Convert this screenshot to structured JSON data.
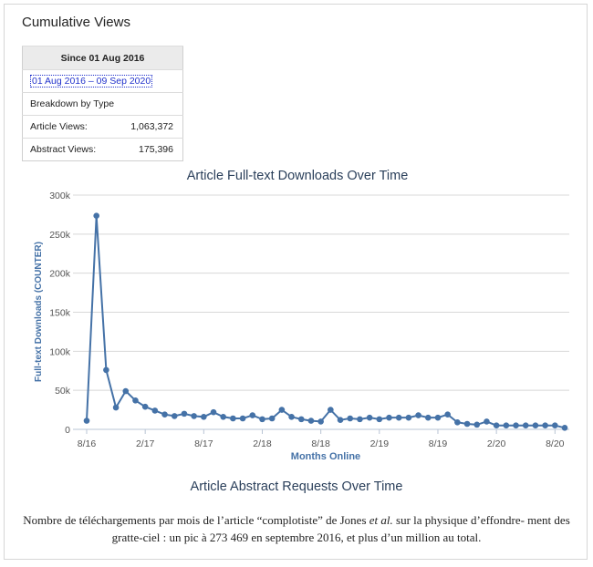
{
  "header": {
    "title": "Cumulative Views"
  },
  "stats": {
    "header": "Since 01 Aug 2016",
    "range_link": "01 Aug 2016 – 09 Sep 2020",
    "breakdown_label": "Breakdown by Type",
    "rows": [
      {
        "label": "Article Views:",
        "value": "1,063,372"
      },
      {
        "label": "Abstract Views:",
        "value": "175,396"
      }
    ]
  },
  "chart_data": {
    "type": "line",
    "title": "Article Full-text Downloads Over Time",
    "xlabel": "Months Online",
    "ylabel": "Full-text Downloads (COUNTER)",
    "ylim": [
      0,
      300000
    ],
    "yticks": [
      0,
      50000,
      100000,
      150000,
      200000,
      250000,
      300000
    ],
    "ytick_labels": [
      "0",
      "50k",
      "100k",
      "150k",
      "200k",
      "250k",
      "300k"
    ],
    "xticks": [
      {
        "index": 0,
        "label": "8/16"
      },
      {
        "index": 6,
        "label": "2/17"
      },
      {
        "index": 12,
        "label": "8/17"
      },
      {
        "index": 18,
        "label": "2/18"
      },
      {
        "index": 24,
        "label": "8/18"
      },
      {
        "index": 30,
        "label": "2/19"
      },
      {
        "index": 36,
        "label": "8/19"
      },
      {
        "index": 42,
        "label": "2/20"
      },
      {
        "index": 48,
        "label": "8/20"
      }
    ],
    "grid": true,
    "color": "#4572a7",
    "series": [
      {
        "values": [
          11000,
          273469,
          76000,
          28000,
          49000,
          37000,
          29000,
          24000,
          19000,
          17000,
          20000,
          17000,
          16000,
          22000,
          16000,
          14000,
          14000,
          18000,
          13000,
          14000,
          25000,
          16000,
          13000,
          11000,
          10000,
          25000,
          12000,
          14000,
          13000,
          15000,
          13000,
          15000,
          15000,
          15000,
          18000,
          15000,
          15000,
          19000,
          9000,
          7000,
          6000,
          10000,
          5000,
          5000,
          5000,
          5000,
          5000,
          5000,
          5000,
          2000
        ]
      }
    ]
  },
  "second_chart": {
    "title": "Article Abstract Requests Over Time"
  },
  "caption": {
    "part1": "Nombre de téléchargements par mois de l’article “complotiste” de Jones ",
    "em": "et al.",
    "part2": " sur la physique d’effondre- ment des gratte-ciel : un pic à 273 469 en septembre 2016, et plus d’un million au total."
  }
}
